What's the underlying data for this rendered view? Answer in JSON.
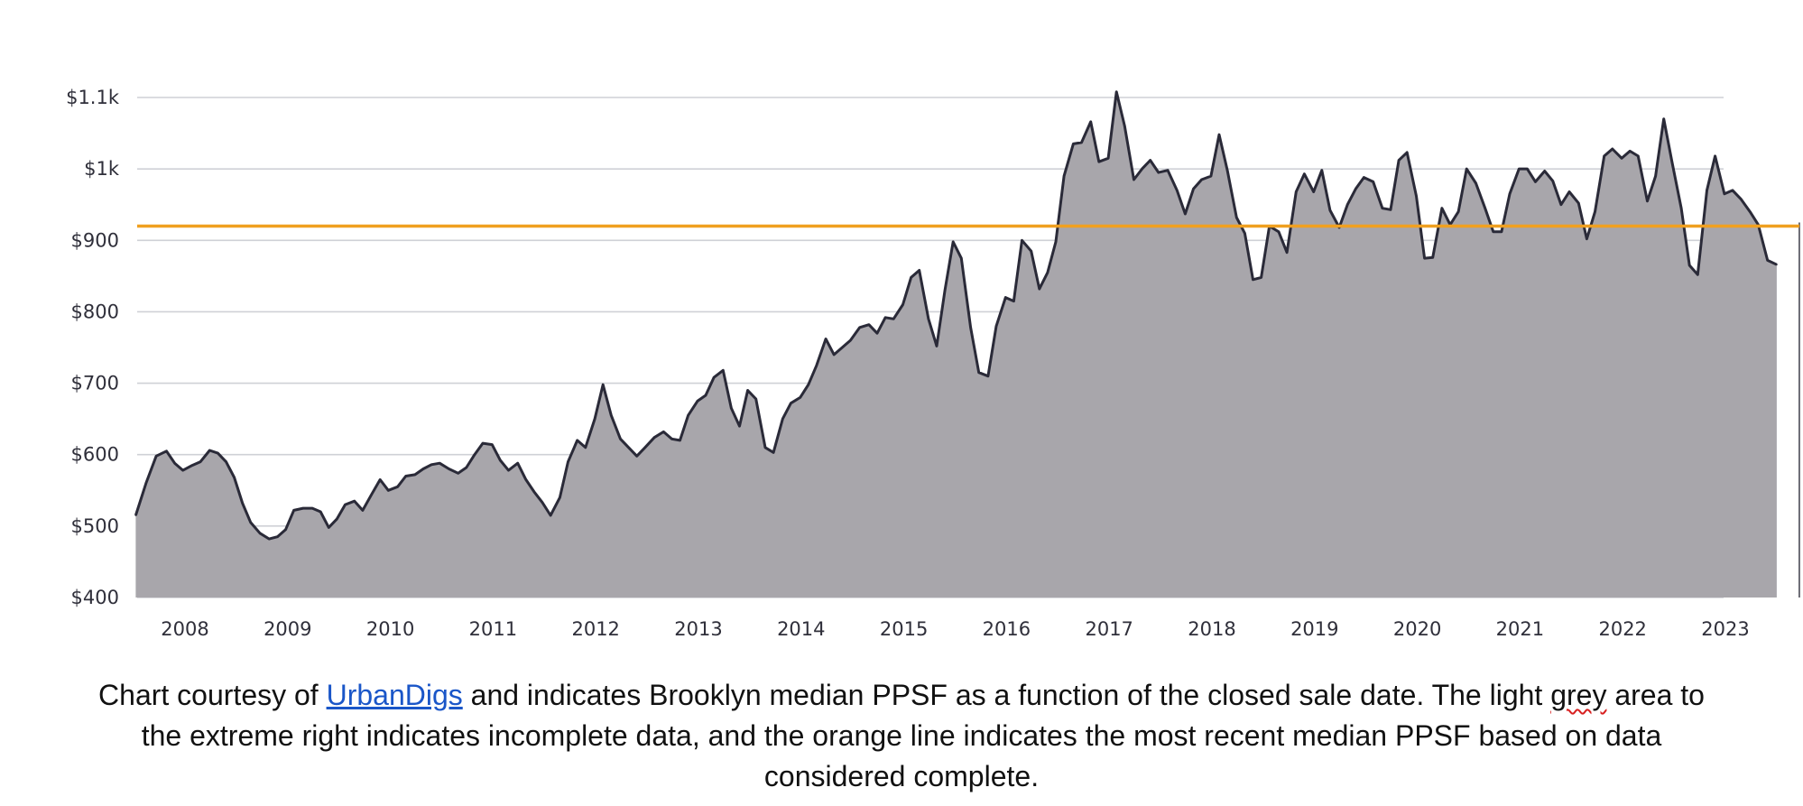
{
  "chart_data": {
    "type": "area",
    "title": "",
    "xlabel": "",
    "ylabel": "",
    "ylim": [
      400,
      1100
    ],
    "y_ticks": [
      {
        "value": 400,
        "label": "$400"
      },
      {
        "value": 500,
        "label": "$500"
      },
      {
        "value": 600,
        "label": "$600"
      },
      {
        "value": 700,
        "label": "$700"
      },
      {
        "value": 800,
        "label": "$800"
      },
      {
        "value": 900,
        "label": "$900"
      },
      {
        "value": 1000,
        "label": "$1k"
      },
      {
        "value": 1100,
        "label": "$1.1k"
      }
    ],
    "x_ticks": [
      {
        "value": 2008,
        "label": "2008"
      },
      {
        "value": 2009,
        "label": "2009"
      },
      {
        "value": 2010,
        "label": "2010"
      },
      {
        "value": 2011,
        "label": "2011"
      },
      {
        "value": 2012,
        "label": "2012"
      },
      {
        "value": 2013,
        "label": "2013"
      },
      {
        "value": 2014,
        "label": "2014"
      },
      {
        "value": 2015,
        "label": "2015"
      },
      {
        "value": 2016,
        "label": "2016"
      },
      {
        "value": 2017,
        "label": "2017"
      },
      {
        "value": 2018,
        "label": "2018"
      },
      {
        "value": 2019,
        "label": "2019"
      },
      {
        "value": 2020,
        "label": "2020"
      },
      {
        "value": 2021,
        "label": "2021"
      },
      {
        "value": 2022,
        "label": "2022"
      },
      {
        "value": 2023,
        "label": "2023"
      }
    ],
    "grid": true,
    "reference_line": {
      "value": 920,
      "color": "#f0a020"
    },
    "series": [
      {
        "color": "#2a2a38",
        "fill": "#a8a6ab",
        "incomplete_fill": "#c9cdd3",
        "incomplete_from": 2023.72,
        "points": [
          [
            2007.52,
            515
          ],
          [
            2007.62,
            560
          ],
          [
            2007.72,
            598
          ],
          [
            2007.82,
            605
          ],
          [
            2007.9,
            588
          ],
          [
            2007.98,
            578
          ],
          [
            2008.07,
            585
          ],
          [
            2008.15,
            590
          ],
          [
            2008.24,
            606
          ],
          [
            2008.32,
            602
          ],
          [
            2008.4,
            590
          ],
          [
            2008.48,
            568
          ],
          [
            2008.56,
            532
          ],
          [
            2008.64,
            505
          ],
          [
            2008.73,
            490
          ],
          [
            2008.82,
            482
          ],
          [
            2008.9,
            485
          ],
          [
            2008.98,
            495
          ],
          [
            2009.06,
            522
          ],
          [
            2009.15,
            525
          ],
          [
            2009.24,
            525
          ],
          [
            2009.32,
            520
          ],
          [
            2009.4,
            498
          ],
          [
            2009.48,
            510
          ],
          [
            2009.56,
            530
          ],
          [
            2009.65,
            535
          ],
          [
            2009.73,
            522
          ],
          [
            2009.82,
            545
          ],
          [
            2009.9,
            565
          ],
          [
            2009.98,
            550
          ],
          [
            2010.07,
            555
          ],
          [
            2010.15,
            570
          ],
          [
            2010.24,
            572
          ],
          [
            2010.32,
            580
          ],
          [
            2010.4,
            586
          ],
          [
            2010.48,
            588
          ],
          [
            2010.57,
            580
          ],
          [
            2010.66,
            574
          ],
          [
            2010.74,
            582
          ],
          [
            2010.82,
            600
          ],
          [
            2010.9,
            616
          ],
          [
            2010.99,
            614
          ],
          [
            2011.07,
            592
          ],
          [
            2011.15,
            578
          ],
          [
            2011.24,
            588
          ],
          [
            2011.32,
            565
          ],
          [
            2011.4,
            548
          ],
          [
            2011.48,
            533
          ],
          [
            2011.56,
            515
          ],
          [
            2011.65,
            540
          ],
          [
            2011.73,
            590
          ],
          [
            2011.82,
            620
          ],
          [
            2011.9,
            610
          ],
          [
            2011.99,
            650
          ],
          [
            2012.07,
            698
          ],
          [
            2012.15,
            655
          ],
          [
            2012.24,
            622
          ],
          [
            2012.32,
            610
          ],
          [
            2012.4,
            598
          ],
          [
            2012.48,
            610
          ],
          [
            2012.57,
            624
          ],
          [
            2012.66,
            632
          ],
          [
            2012.74,
            622
          ],
          [
            2012.82,
            620
          ],
          [
            2012.9,
            655
          ],
          [
            2012.99,
            675
          ],
          [
            2013.07,
            683
          ],
          [
            2013.15,
            708
          ],
          [
            2013.24,
            718
          ],
          [
            2013.32,
            665
          ],
          [
            2013.4,
            640
          ],
          [
            2013.48,
            690
          ],
          [
            2013.56,
            678
          ],
          [
            2013.65,
            610
          ],
          [
            2013.73,
            603
          ],
          [
            2013.82,
            650
          ],
          [
            2013.9,
            672
          ],
          [
            2013.99,
            680
          ],
          [
            2014.07,
            698
          ],
          [
            2014.15,
            725
          ],
          [
            2014.24,
            762
          ],
          [
            2014.32,
            740
          ],
          [
            2014.4,
            750
          ],
          [
            2014.48,
            760
          ],
          [
            2014.57,
            778
          ],
          [
            2014.66,
            782
          ],
          [
            2014.74,
            770
          ],
          [
            2014.82,
            792
          ],
          [
            2014.9,
            790
          ],
          [
            2014.99,
            810
          ],
          [
            2015.07,
            848
          ],
          [
            2015.15,
            858
          ],
          [
            2015.24,
            790
          ],
          [
            2015.32,
            752
          ],
          [
            2015.4,
            830
          ],
          [
            2015.48,
            898
          ],
          [
            2015.56,
            875
          ],
          [
            2015.65,
            778
          ],
          [
            2015.73,
            715
          ],
          [
            2015.82,
            710
          ],
          [
            2015.9,
            780
          ],
          [
            2015.99,
            820
          ],
          [
            2016.07,
            815
          ],
          [
            2016.15,
            900
          ],
          [
            2016.24,
            885
          ],
          [
            2016.32,
            832
          ],
          [
            2016.4,
            855
          ],
          [
            2016.48,
            898
          ],
          [
            2016.56,
            990
          ],
          [
            2016.65,
            1035
          ],
          [
            2016.73,
            1037
          ],
          [
            2016.82,
            1066
          ],
          [
            2016.9,
            1010
          ],
          [
            2016.99,
            1015
          ],
          [
            2017.07,
            1108
          ],
          [
            2017.15,
            1060
          ],
          [
            2017.24,
            985
          ],
          [
            2017.32,
            1000
          ],
          [
            2017.4,
            1012
          ],
          [
            2017.48,
            995
          ],
          [
            2017.57,
            998
          ],
          [
            2017.66,
            970
          ],
          [
            2017.74,
            937
          ],
          [
            2017.82,
            972
          ],
          [
            2017.9,
            985
          ],
          [
            2017.99,
            990
          ],
          [
            2018.07,
            1048
          ],
          [
            2018.15,
            998
          ],
          [
            2018.24,
            932
          ],
          [
            2018.32,
            910
          ],
          [
            2018.4,
            845
          ],
          [
            2018.48,
            848
          ],
          [
            2018.56,
            920
          ],
          [
            2018.65,
            912
          ],
          [
            2018.73,
            883
          ],
          [
            2018.82,
            968
          ],
          [
            2018.9,
            993
          ],
          [
            2018.99,
            968
          ],
          [
            2019.07,
            998
          ],
          [
            2019.15,
            942
          ],
          [
            2019.24,
            918
          ],
          [
            2019.32,
            950
          ],
          [
            2019.4,
            972
          ],
          [
            2019.48,
            988
          ],
          [
            2019.57,
            982
          ],
          [
            2019.66,
            945
          ],
          [
            2019.74,
            943
          ],
          [
            2019.82,
            1012
          ],
          [
            2019.9,
            1023
          ],
          [
            2019.99,
            962
          ],
          [
            2020.07,
            875
          ],
          [
            2020.15,
            876
          ],
          [
            2020.24,
            945
          ],
          [
            2020.32,
            922
          ],
          [
            2020.4,
            940
          ],
          [
            2020.48,
            1000
          ],
          [
            2020.57,
            980
          ],
          [
            2020.66,
            945
          ],
          [
            2020.74,
            912
          ],
          [
            2020.82,
            912
          ],
          [
            2020.9,
            965
          ],
          [
            2020.99,
            1000
          ],
          [
            2021.07,
            1000
          ],
          [
            2021.15,
            982
          ],
          [
            2021.24,
            997
          ],
          [
            2021.32,
            983
          ],
          [
            2021.4,
            950
          ],
          [
            2021.48,
            968
          ],
          [
            2021.57,
            952
          ],
          [
            2021.65,
            902
          ],
          [
            2021.73,
            940
          ],
          [
            2021.82,
            1018
          ],
          [
            2021.9,
            1028
          ],
          [
            2021.99,
            1015
          ],
          [
            2022.07,
            1025
          ],
          [
            2022.15,
            1018
          ],
          [
            2022.24,
            955
          ],
          [
            2022.32,
            990
          ],
          [
            2022.4,
            1070
          ],
          [
            2022.48,
            1010
          ],
          [
            2022.57,
            945
          ],
          [
            2022.65,
            865
          ],
          [
            2022.73,
            852
          ],
          [
            2022.82,
            970
          ],
          [
            2022.9,
            1018
          ],
          [
            2022.99,
            965
          ],
          [
            2023.07,
            970
          ],
          [
            2023.15,
            958
          ],
          [
            2023.24,
            940
          ],
          [
            2023.32,
            922
          ],
          [
            2023.41,
            872
          ],
          [
            2023.5,
            866
          ]
        ]
      }
    ]
  },
  "caption": {
    "line1_prefix": "Chart courtesy of ",
    "link_text": "UrbanDigs",
    "line1_mid": " and indicates Brooklyn median PPSF as a function of the closed sale date.  The light ",
    "line1_flagged_word": "grey",
    "line1_suffix": " area to",
    "line2": "the extreme right indicates incomplete data, and the orange line indicates the most recent median PPSF based on data",
    "line3": "considered complete."
  }
}
